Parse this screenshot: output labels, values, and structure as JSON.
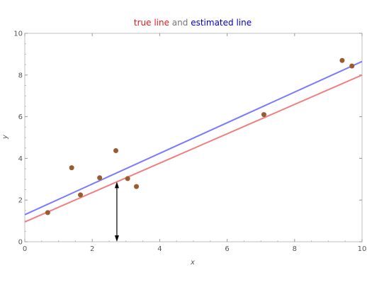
{
  "chart_data": {
    "type": "scatter",
    "title_parts": [
      {
        "text": "true line",
        "color": "#e41a1c"
      },
      {
        "text": " and ",
        "color": "#777777"
      },
      {
        "text": "estimated line",
        "color": "#0000cc"
      }
    ],
    "xlabel": "x",
    "ylabel": "y",
    "xlim": [
      0,
      10
    ],
    "ylim": [
      0,
      10
    ],
    "xticks": [
      0,
      2,
      4,
      6,
      8,
      10
    ],
    "yticks": [
      0,
      2,
      4,
      6,
      8,
      10
    ],
    "points": [
      {
        "x": 0.68,
        "y": 1.4
      },
      {
        "x": 1.39,
        "y": 3.55
      },
      {
        "x": 1.65,
        "y": 2.25
      },
      {
        "x": 2.22,
        "y": 3.07
      },
      {
        "x": 2.7,
        "y": 4.37
      },
      {
        "x": 3.05,
        "y": 3.03
      },
      {
        "x": 3.31,
        "y": 2.65
      },
      {
        "x": 7.09,
        "y": 6.1
      },
      {
        "x": 9.41,
        "y": 8.7
      },
      {
        "x": 9.7,
        "y": 8.43
      }
    ],
    "lines": [
      {
        "name": "true line",
        "intercept": 0.95,
        "slope": 0.705,
        "color": "#f08080"
      },
      {
        "name": "estimated line",
        "intercept": 1.3,
        "slope": 0.735,
        "color": "#7b7bff"
      }
    ],
    "arrow": {
      "x": 2.73,
      "y_from": 0,
      "y_to": 2.88
    },
    "point_color": "#9c5b2c",
    "grid": false
  }
}
